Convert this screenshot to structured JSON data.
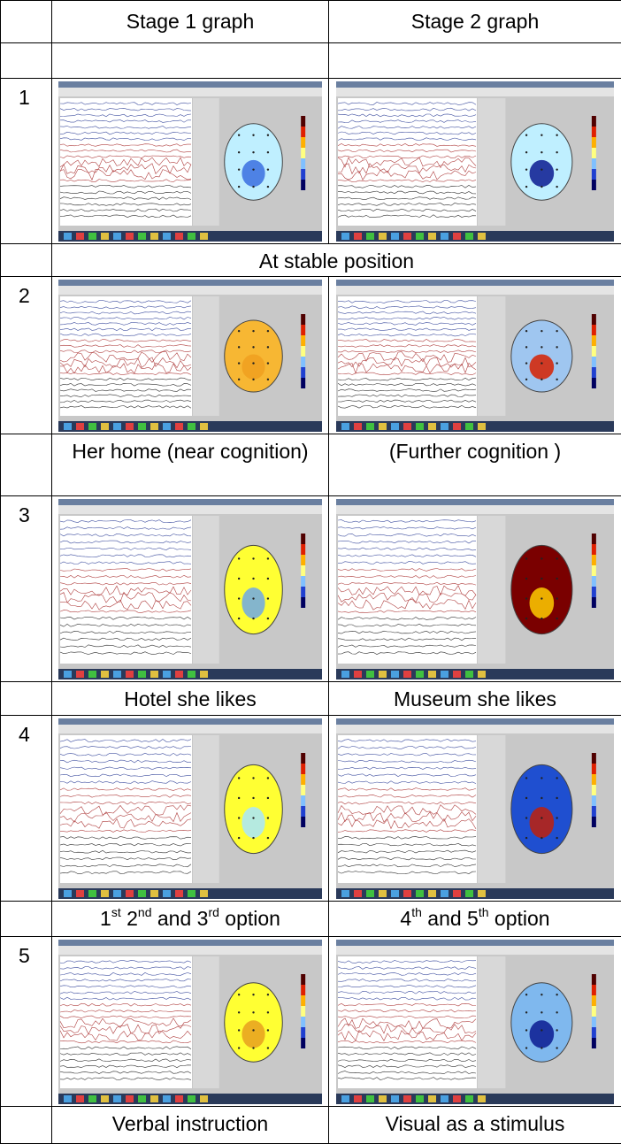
{
  "table": {
    "header": [
      "Stage 1 graph",
      "Stage 2 graph"
    ],
    "sections": [
      {
        "number": "1",
        "captions": [
          [
            {
              "t": "At stable position"
            }
          ]
        ]
      },
      {
        "number": "2",
        "captions": [
          [
            {
              "t": "Her home (near cognition)"
            }
          ],
          [
            {
              "t": "(Further cognition )"
            }
          ]
        ]
      },
      {
        "number": "3",
        "captions": [
          [
            {
              "t": "Hotel she likes"
            }
          ],
          [
            {
              "t": "Museum she likes"
            }
          ]
        ]
      },
      {
        "number": "4",
        "captions": [
          [
            {
              "t": "1",
              "sup": "st"
            },
            {
              "t": " 2",
              "sup": "nd"
            },
            {
              "t": " and 3",
              "sup": "rd"
            },
            {
              "t": " option"
            }
          ],
          [
            {
              "t": "4",
              "sup": "th"
            },
            {
              "t": " and 5",
              "sup": "th"
            },
            {
              "t": " option"
            }
          ]
        ]
      },
      {
        "number": "5",
        "captions": [
          [
            {
              "t": "Verbal instruction"
            }
          ],
          [
            {
              "t": "Visual as a stimulus"
            }
          ]
        ]
      }
    ]
  }
}
